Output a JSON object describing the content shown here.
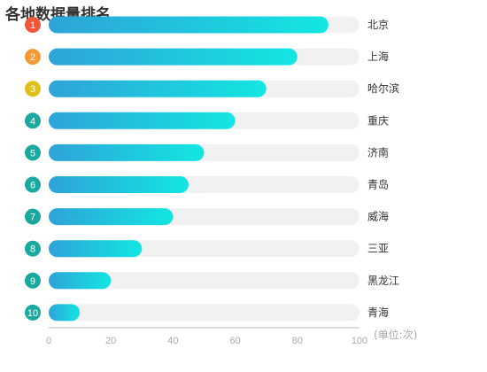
{
  "chart_data": {
    "type": "bar",
    "orientation": "horizontal",
    "title": "各地数据量排名",
    "categories": [
      "北京",
      "上海",
      "哈尔滨",
      "重庆",
      "济南",
      "青岛",
      "威海",
      "三亚",
      "黑龙江",
      "青海"
    ],
    "ranks": [
      "1",
      "2",
      "3",
      "4",
      "5",
      "6",
      "7",
      "8",
      "9",
      "10"
    ],
    "values": [
      90,
      80,
      70,
      60,
      50,
      45,
      40,
      30,
      20,
      10
    ],
    "xlim": [
      0,
      100
    ],
    "x_ticks": [
      0,
      20,
      40,
      60,
      80,
      100
    ],
    "x_tick_labels": [
      "0",
      "20",
      "40",
      "60",
      "80",
      "100"
    ],
    "unit": "(单位:次)",
    "grid": false,
    "colors": {
      "bar_start": "#2ea3d8",
      "bar_end": "#13e6e2",
      "track": "#f1f1f1",
      "rank_1": "#f0563c",
      "rank_2": "#f39a35",
      "rank_3": "#e0c11c",
      "rank_other": "#1aa99e"
    }
  }
}
